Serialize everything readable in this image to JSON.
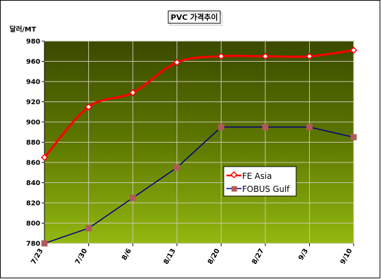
{
  "chart_data": {
    "type": "line",
    "title": "PVC 가격추이",
    "ylabel": "달러/MT",
    "xlabel": "",
    "categories": [
      "7/23",
      "7/30",
      "8/6",
      "8/13",
      "8/20",
      "8/27",
      "9/3",
      "9/10"
    ],
    "ylim": [
      780,
      980
    ],
    "yticks": [
      780,
      800,
      820,
      840,
      860,
      880,
      900,
      920,
      940,
      960,
      980
    ],
    "grid": true,
    "legend_position": "center-right",
    "series": [
      {
        "name": "FE Asia",
        "values": [
          865,
          915,
          929,
          959,
          965,
          965,
          965,
          971
        ],
        "color": "#ff0000",
        "marker": "diamond-open",
        "smooth": true
      },
      {
        "name": "FOBUS Gulf",
        "values": [
          780,
          795,
          825,
          855,
          895,
          895,
          895,
          885
        ],
        "color": "#000080",
        "marker": "square",
        "smooth": false
      }
    ]
  }
}
